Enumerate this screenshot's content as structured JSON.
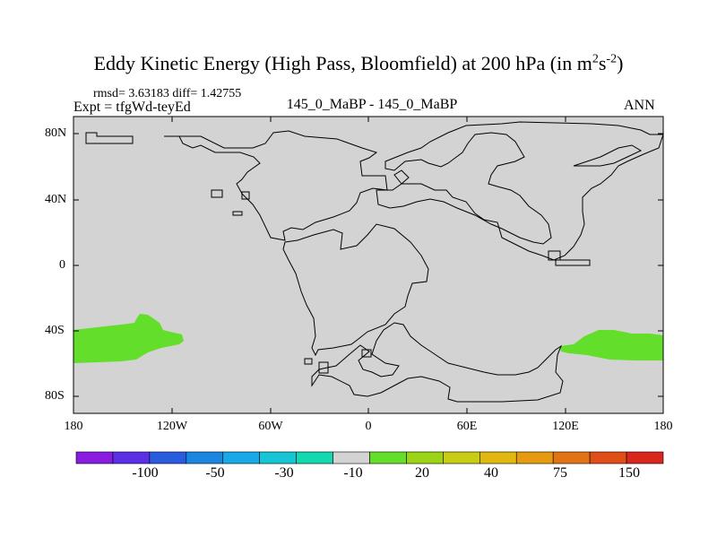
{
  "title": {
    "main": "Eddy Kinetic Energy (High Pass, Bloomfield) at 200 hPa (in m",
    "exp1": "2",
    "mid": "s",
    "exp2": "-2",
    "close": ")"
  },
  "stats": "rmsd= 3.63183 diff= 1.42755",
  "expt": "Expt = tfgWd-teyEd",
  "center_label": "145_0_MaBP - 145_0_MaBP",
  "season": "ANN",
  "axes": {
    "y_ticks": [
      "80N",
      "40N",
      "0",
      "40S",
      "80S"
    ],
    "x_ticks": [
      "180",
      "120W",
      "60W",
      "0",
      "60E",
      "120E",
      "180"
    ]
  },
  "colors": {
    "background": "#d3d3d3",
    "positive_anomaly": "#63de2a",
    "coastline": "#000000"
  },
  "colorbar": {
    "colors": [
      "#8a1be0",
      "#5a2fe6",
      "#2b5ce0",
      "#1a86e0",
      "#18a9e6",
      "#16c6d4",
      "#14d8b0",
      "#d3d3d3",
      "#63de2a",
      "#9bd415",
      "#c8cc12",
      "#e0b810",
      "#e69a10",
      "#e07414",
      "#e04e18",
      "#d9261e"
    ],
    "labels": [
      "-100",
      "-50",
      "-30",
      "-10",
      "20",
      "40",
      "75",
      "150"
    ]
  }
}
